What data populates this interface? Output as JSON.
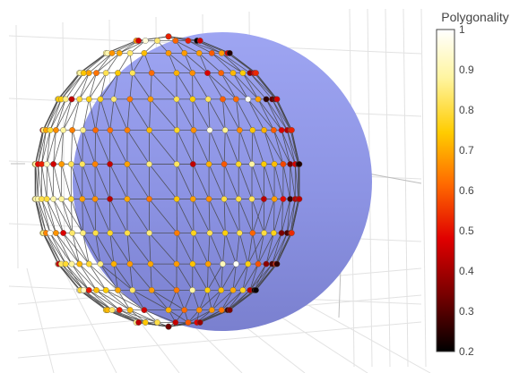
{
  "chart_data": {
    "type": "scatter",
    "subtype": "3d-mesh-with-vertex-markers",
    "title": "",
    "xlabel": "",
    "ylabel": "",
    "zlabel": "",
    "grid": true,
    "sphere_color": "#8f97e6",
    "mesh_line_color": "#444444",
    "colorbar": {
      "title": "Polygonality",
      "range": [
        0.2,
        1.0
      ],
      "ticks": [
        1,
        0.9,
        0.8,
        0.7,
        0.6,
        0.5,
        0.4,
        0.3,
        0.2
      ],
      "colorscale": [
        "#000000",
        "#7a0000",
        "#e60000",
        "#ff6600",
        "#ffd400",
        "#fff6a8",
        "#ffffff"
      ],
      "placement": "right"
    },
    "point_value_summary": {
      "min": 0.2,
      "max": 1.0,
      "dominant_range": [
        0.6,
        0.8
      ],
      "low_values_near": "right rim of visible cap"
    }
  }
}
